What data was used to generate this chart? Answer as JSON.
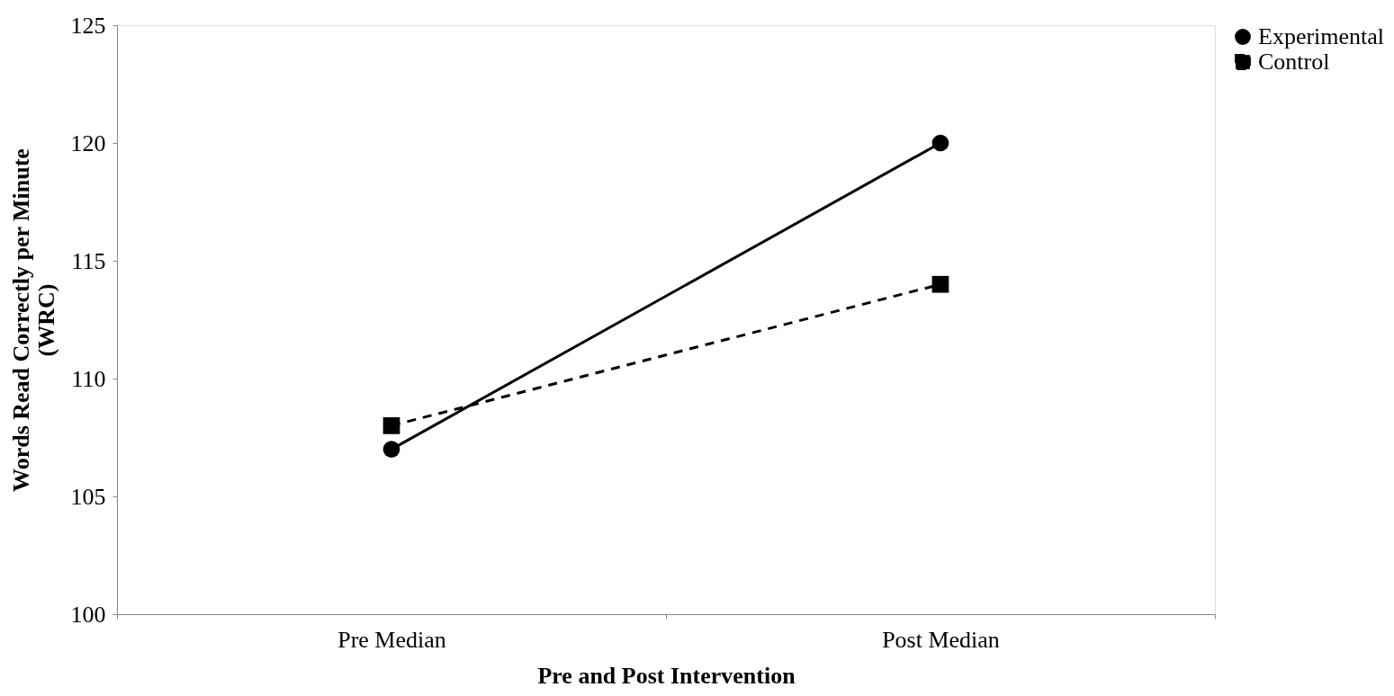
{
  "chart_data": {
    "type": "line",
    "categories": [
      "Pre Median",
      "Post Median"
    ],
    "series": [
      {
        "name": "Experimental",
        "color": "#000000",
        "values": [
          107,
          120
        ],
        "marker": "circle",
        "line_style": "solid"
      },
      {
        "name": "Control",
        "color": "#000000",
        "values": [
          108,
          114
        ],
        "marker": "square",
        "line_style": "dashed"
      }
    ],
    "xlabel": "Pre and Post Intervention",
    "ylabel": "Words Read Correctly per Minute\n(WRC)",
    "ylim": [
      100,
      125
    ],
    "yticks": [
      100,
      105,
      110,
      115,
      120,
      125
    ],
    "grid": false,
    "legend": "right"
  }
}
